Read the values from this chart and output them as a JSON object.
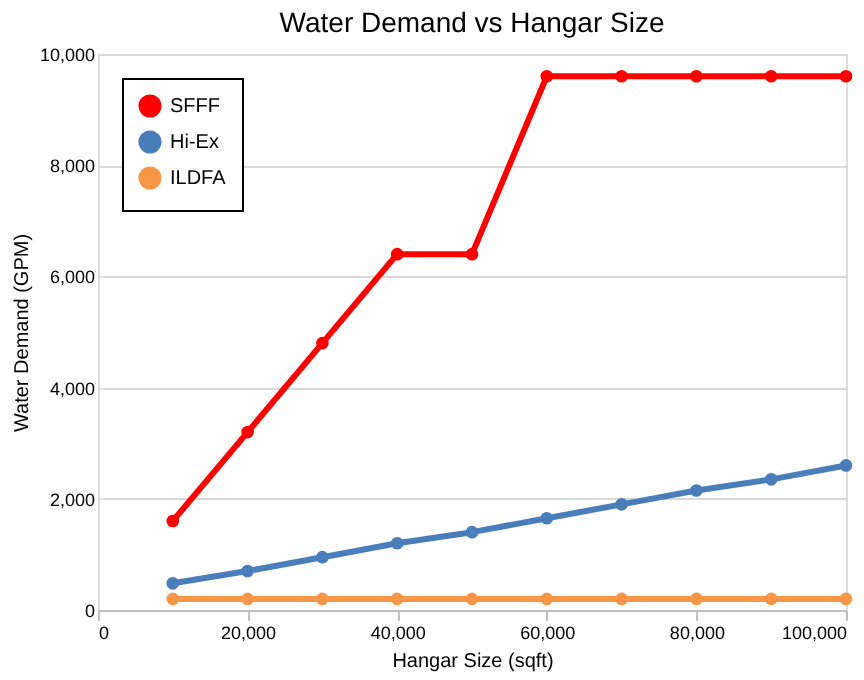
{
  "chart_data": {
    "type": "line",
    "title": "Water Demand vs Hangar Size",
    "xlabel": "Hangar Size (sqft)",
    "ylabel": "Water Demand (GPM)",
    "x": [
      10000,
      20000,
      30000,
      40000,
      50000,
      60000,
      70000,
      80000,
      90000,
      100000
    ],
    "series": [
      {
        "name": "SFFF",
        "color": "#ff0000",
        "values": [
          1600,
          3200,
          4800,
          6400,
          6400,
          9600,
          9600,
          9600,
          9600,
          9600
        ]
      },
      {
        "name": "Hi-Ex",
        "color": "#4a7ebb",
        "values": [
          480,
          700,
          950,
          1200,
          1400,
          1650,
          1900,
          2150,
          2350,
          2600
        ]
      },
      {
        "name": "ILDFA",
        "color": "#f79646",
        "values": [
          200,
          200,
          200,
          200,
          200,
          200,
          200,
          200,
          200,
          200
        ]
      }
    ],
    "xlim": [
      0,
      100000
    ],
    "xticks": [
      {
        "value": 0,
        "label": "0"
      },
      {
        "value": 20000,
        "label": "20,000"
      },
      {
        "value": 40000,
        "label": "40,000"
      },
      {
        "value": 60000,
        "label": "60,000"
      },
      {
        "value": 80000,
        "label": "80,000"
      },
      {
        "value": 100000,
        "label": "100,000"
      }
    ],
    "ylim": [
      0,
      10000
    ],
    "yticks": [
      {
        "value": 0,
        "label": "0"
      },
      {
        "value": 2000,
        "label": "2,000"
      },
      {
        "value": 4000,
        "label": "4,000"
      },
      {
        "value": 6000,
        "label": "6,000"
      },
      {
        "value": 8000,
        "label": "8,000"
      },
      {
        "value": 10000,
        "label": "10,000"
      }
    ],
    "grid": "y",
    "legend": "top left",
    "marker": "circle",
    "line_style": "solid"
  }
}
